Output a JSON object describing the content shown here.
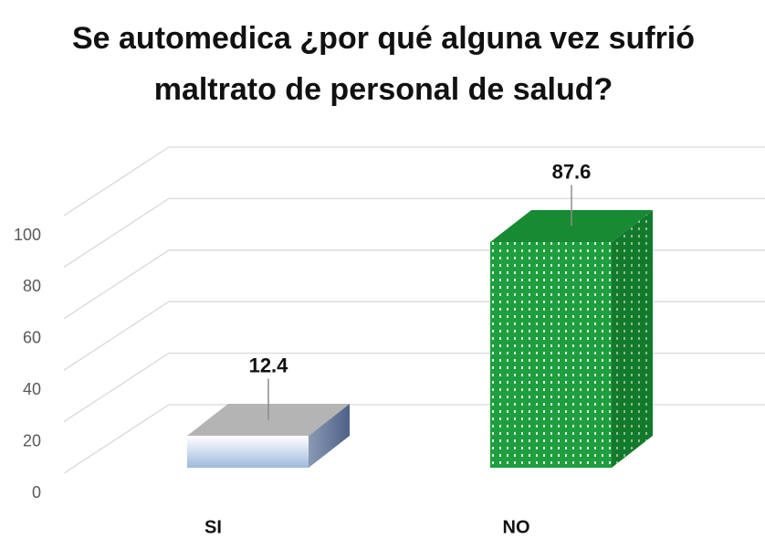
{
  "chart_data": {
    "type": "bar3d",
    "title": "Se automedica ¿por qué alguna vez sufrió maltrato de personal de salud?",
    "categories": [
      "SI",
      "NO"
    ],
    "values": [
      12.4,
      87.6
    ],
    "colors": [
      "#bcd0ea",
      "#1e9e3e"
    ],
    "ylim": [
      0,
      100
    ],
    "yticks": [
      0,
      20,
      40,
      60,
      80,
      100
    ],
    "grid": true
  }
}
